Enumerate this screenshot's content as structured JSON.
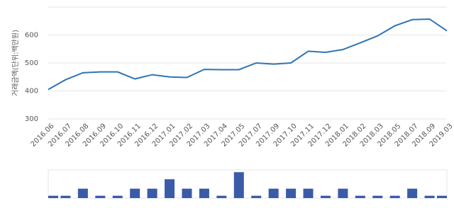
{
  "chart_data": [
    {
      "type": "line",
      "y_label": "거래금액(단위:백만원)",
      "categories": [
        "2016.06",
        "2016.07",
        "2016.08",
        "2016.09",
        "2016.10",
        "2016.11",
        "2016.12",
        "2017.01",
        "2017.02",
        "2017.03",
        "2017.04",
        "2017.05",
        "2017.07",
        "2017.09",
        "2017.10",
        "2017.11",
        "2017.12",
        "2018.01",
        "2018.02",
        "2018.03",
        "2018.05",
        "2018.07",
        "2018.09",
        "2019.03"
      ],
      "values": [
        405,
        440,
        465,
        468,
        468,
        443,
        458,
        450,
        448,
        477,
        476,
        476,
        500,
        496,
        500,
        542,
        538,
        548,
        572,
        597,
        633,
        655,
        657,
        615
      ],
      "color": "#2e75b6",
      "ylim": [
        300,
        700
      ],
      "yticks": [
        300,
        400,
        500,
        600
      ],
      "grid": true
    },
    {
      "type": "bar",
      "values": [
        1,
        1,
        4,
        1,
        1,
        4,
        4,
        8,
        4,
        4,
        1,
        11,
        1,
        4,
        4,
        4,
        1,
        4,
        1,
        1,
        1,
        4,
        1,
        1
      ],
      "color": "#3a5ba8",
      "ylim": [
        0,
        12
      ]
    }
  ]
}
